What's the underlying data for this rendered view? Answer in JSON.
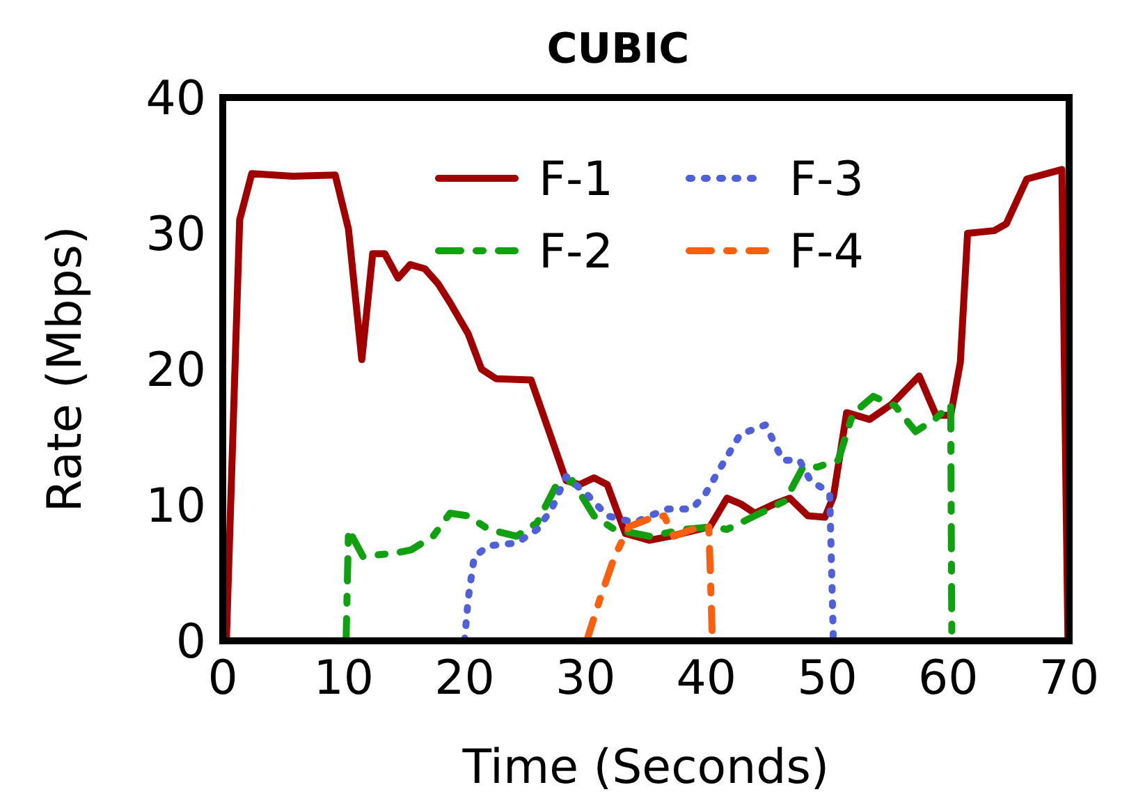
{
  "chart_data": {
    "type": "line",
    "title": "CUBIC",
    "xlabel": "Time (Seconds)",
    "ylabel": "Rate (Mbps)",
    "xlim": [
      0,
      70
    ],
    "xticks": [
      0,
      10,
      20,
      30,
      40,
      50,
      60,
      70
    ],
    "ylim": [
      0,
      40
    ],
    "yticks": [
      0,
      10,
      20,
      30,
      40
    ],
    "grid": false,
    "legend": "top",
    "marker": "none",
    "series": [
      {
        "name": "F-1",
        "color": "#a00000",
        "line_style": "solid",
        "x": [
          0.3,
          1.4,
          2.4,
          5.8,
          9.3,
          10.4,
          11.5,
          12.4,
          13.4,
          14.5,
          15.5,
          16.7,
          17.8,
          18.8,
          20.3,
          21.4,
          22.6,
          25.5,
          26.6,
          28.4,
          29.5,
          30.7,
          31.8,
          33.3,
          35.3,
          37,
          40.3,
          41.7,
          42.8,
          44,
          45.7,
          46.9,
          48.4,
          49.8,
          50.5,
          51.6,
          53.5,
          55.3,
          57.6,
          59,
          60.2,
          61,
          61.6,
          63.8,
          64.8,
          66.5,
          69.4,
          69.9
        ],
        "values": [
          0,
          31,
          34.4,
          34.2,
          34.3,
          30.3,
          20.7,
          28.5,
          28.5,
          26.7,
          27.7,
          27.4,
          26.3,
          24.9,
          22.6,
          20,
          19.3,
          19.2,
          16.4,
          11.8,
          11.5,
          12,
          11.5,
          7.9,
          7.4,
          7.7,
          8.4,
          10.5,
          10.1,
          9.4,
          10.1,
          10.5,
          9.2,
          9.1,
          10.6,
          16.8,
          16.3,
          17.4,
          19.5,
          16.6,
          16.6,
          20.5,
          30,
          30.2,
          30.7,
          34,
          34.7,
          0
        ]
      },
      {
        "name": "F-2",
        "color": "#10a010",
        "line_style": "dashed",
        "x": [
          10.2,
          10.4,
          11.6,
          14.5,
          15.6,
          17.4,
          18.8,
          20.3,
          22,
          24.3,
          26,
          27.5,
          28.9,
          30.7,
          32.4,
          35.3,
          38.2,
          40.5,
          41.7,
          44,
          46.5,
          48,
          49.2,
          50.9,
          52.1,
          53.8,
          55.6,
          57.3,
          59,
          60.2,
          60.3
        ],
        "values": [
          0,
          8.2,
          6.2,
          6.5,
          6.7,
          7.7,
          9.4,
          9.2,
          8.2,
          7.7,
          8.7,
          11.3,
          11.8,
          9.2,
          8.2,
          7.7,
          8.2,
          8.4,
          8.2,
          9.2,
          10.3,
          12.8,
          12.8,
          13.3,
          16.7,
          18,
          17.3,
          15.4,
          16.4,
          17.4,
          0
        ]
      },
      {
        "name": "F-3",
        "color": "#5060d8",
        "line_style": "dotted",
        "x": [
          20,
          20.3,
          20.8,
          22,
          24.3,
          26,
          27.2,
          28.4,
          30.1,
          31.8,
          34.1,
          35.3,
          36.8,
          38.8,
          39.9,
          41.2,
          42.8,
          44.9,
          46.3,
          47.7,
          48.6,
          49.5,
          50.2,
          50.5
        ],
        "values": [
          0,
          3.1,
          6.2,
          7,
          7.2,
          8.2,
          9.7,
          12.1,
          10.8,
          9.2,
          8.7,
          9.2,
          9.7,
          9.7,
          10.8,
          12.8,
          15.2,
          15.9,
          13.3,
          13.3,
          11.8,
          11.3,
          10.8,
          0
        ]
      },
      {
        "name": "F-4",
        "color": "#f86010",
        "line_style": "dashed",
        "x": [
          30.1,
          31.2,
          32.4,
          33.6,
          35.3,
          36.5,
          37.3,
          38.8,
          40.2,
          40.5
        ],
        "values": [
          0,
          3.1,
          6.2,
          8.4,
          9,
          9.2,
          7.7,
          8.2,
          8.4,
          0
        ]
      }
    ]
  }
}
